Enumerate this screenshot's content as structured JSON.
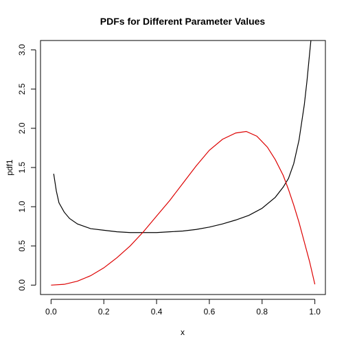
{
  "chart_data": {
    "type": "line",
    "title": "PDFs for Different Parameter Values",
    "xlabel": "x",
    "ylabel": "pdf1",
    "xlim": [
      -0.04,
      1.04
    ],
    "ylim": [
      -0.12,
      3.12
    ],
    "x_ticks": [
      0.0,
      0.2,
      0.4,
      0.6,
      0.8,
      1.0
    ],
    "x_tick_labels": [
      "0.0",
      "0.2",
      "0.4",
      "0.6",
      "0.8",
      "1.0"
    ],
    "y_ticks": [
      0.0,
      0.5,
      1.0,
      1.5,
      2.0,
      2.5,
      3.0
    ],
    "y_tick_labels": [
      "0.0",
      "0.5",
      "1.0",
      "1.5",
      "2.0",
      "2.5",
      "3.0"
    ],
    "grid": false,
    "legend": "none",
    "series": [
      {
        "color": "#000000",
        "x": [
          0.01,
          0.02,
          0.03,
          0.05,
          0.07,
          0.1,
          0.15,
          0.2,
          0.25,
          0.3,
          0.35,
          0.4,
          0.45,
          0.5,
          0.55,
          0.6,
          0.65,
          0.7,
          0.75,
          0.8,
          0.85,
          0.88,
          0.9,
          0.92,
          0.94,
          0.96,
          0.97,
          0.98,
          0.985
        ],
        "y": [
          1.42,
          1.2,
          1.05,
          0.93,
          0.85,
          0.78,
          0.72,
          0.7,
          0.68,
          0.67,
          0.67,
          0.67,
          0.68,
          0.69,
          0.71,
          0.74,
          0.78,
          0.83,
          0.89,
          0.98,
          1.12,
          1.25,
          1.36,
          1.55,
          1.85,
          2.3,
          2.6,
          2.95,
          3.12
        ]
      },
      {
        "color": "#dd0000",
        "x": [
          0.0,
          0.05,
          0.1,
          0.15,
          0.2,
          0.25,
          0.3,
          0.35,
          0.4,
          0.45,
          0.5,
          0.55,
          0.6,
          0.65,
          0.7,
          0.74,
          0.78,
          0.82,
          0.85,
          0.88,
          0.9,
          0.92,
          0.94,
          0.96,
          0.98,
          1.0
        ],
        "y": [
          0.0,
          0.01,
          0.05,
          0.12,
          0.22,
          0.35,
          0.5,
          0.68,
          0.88,
          1.08,
          1.3,
          1.52,
          1.72,
          1.86,
          1.94,
          1.96,
          1.9,
          1.76,
          1.6,
          1.4,
          1.22,
          1.02,
          0.8,
          0.55,
          0.3,
          0.01
        ]
      }
    ]
  }
}
